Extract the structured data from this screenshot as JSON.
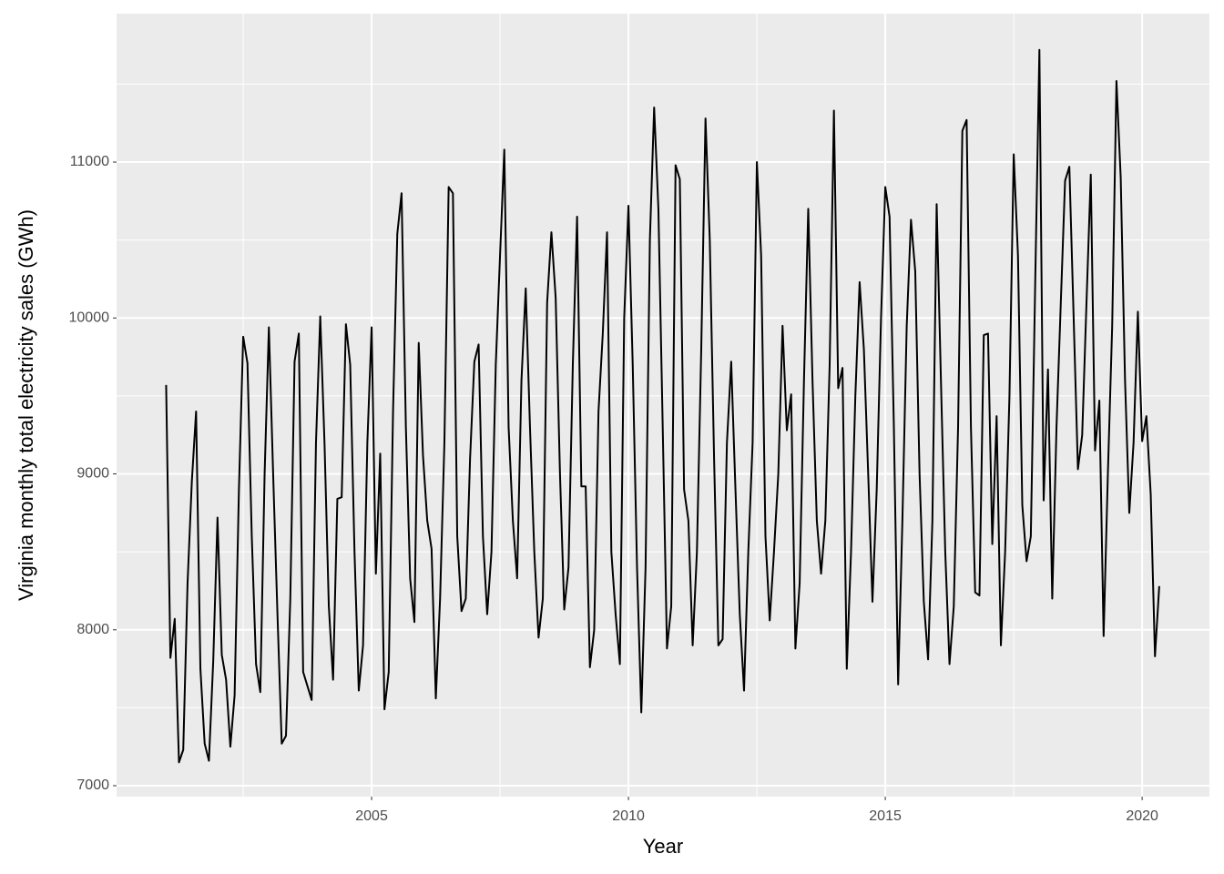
{
  "chart_data": {
    "type": "line",
    "xlabel": "Year",
    "ylabel": "Virginia monthly total electricity sales (GWh)",
    "color": "#000000",
    "grid": true,
    "xlim": [
      2000.035,
      2021.31
    ],
    "ylim": [
      6930,
      11952
    ],
    "xticks": [
      2005,
      2010,
      2015,
      2020
    ],
    "yticks": [
      7000,
      8000,
      9000,
      10000,
      11000
    ],
    "xminor": [
      2002.5,
      2007.5,
      2012.5,
      2017.5
    ],
    "yminor": [
      7500,
      8500,
      9500,
      10500,
      11500
    ],
    "x": [
      2001,
      2001.083,
      2001.167,
      2001.25,
      2001.333,
      2001.417,
      2001.5,
      2001.583,
      2001.667,
      2001.75,
      2001.833,
      2001.917,
      2002,
      2002.083,
      2002.167,
      2002.25,
      2002.333,
      2002.417,
      2002.5,
      2002.583,
      2002.667,
      2002.75,
      2002.833,
      2002.917,
      2003,
      2003.083,
      2003.167,
      2003.25,
      2003.333,
      2003.417,
      2003.5,
      2003.583,
      2003.667,
      2003.75,
      2003.833,
      2003.917,
      2004,
      2004.083,
      2004.167,
      2004.25,
      2004.333,
      2004.417,
      2004.5,
      2004.583,
      2004.667,
      2004.75,
      2004.833,
      2004.917,
      2005,
      2005.083,
      2005.167,
      2005.25,
      2005.333,
      2005.417,
      2005.5,
      2005.583,
      2005.667,
      2005.75,
      2005.833,
      2005.917,
      2006,
      2006.083,
      2006.167,
      2006.25,
      2006.333,
      2006.417,
      2006.5,
      2006.583,
      2006.667,
      2006.75,
      2006.833,
      2006.917,
      2007,
      2007.083,
      2007.167,
      2007.25,
      2007.333,
      2007.417,
      2007.5,
      2007.583,
      2007.667,
      2007.75,
      2007.833,
      2007.917,
      2008,
      2008.083,
      2008.167,
      2008.25,
      2008.333,
      2008.417,
      2008.5,
      2008.583,
      2008.667,
      2008.75,
      2008.833,
      2008.917,
      2009,
      2009.083,
      2009.167,
      2009.25,
      2009.333,
      2009.417,
      2009.5,
      2009.583,
      2009.667,
      2009.75,
      2009.833,
      2009.917,
      2010,
      2010.083,
      2010.167,
      2010.25,
      2010.333,
      2010.417,
      2010.5,
      2010.583,
      2010.667,
      2010.75,
      2010.833,
      2010.917,
      2011,
      2011.083,
      2011.167,
      2011.25,
      2011.333,
      2011.417,
      2011.5,
      2011.583,
      2011.667,
      2011.75,
      2011.833,
      2011.917,
      2012,
      2012.083,
      2012.167,
      2012.25,
      2012.333,
      2012.417,
      2012.5,
      2012.583,
      2012.667,
      2012.75,
      2012.833,
      2012.917,
      2013,
      2013.083,
      2013.167,
      2013.25,
      2013.333,
      2013.417,
      2013.5,
      2013.583,
      2013.667,
      2013.75,
      2013.833,
      2013.917,
      2014,
      2014.083,
      2014.167,
      2014.25,
      2014.333,
      2014.417,
      2014.5,
      2014.583,
      2014.667,
      2014.75,
      2014.833,
      2014.917,
      2015,
      2015.083,
      2015.167,
      2015.25,
      2015.333,
      2015.417,
      2015.5,
      2015.583,
      2015.667,
      2015.75,
      2015.833,
      2015.917,
      2016,
      2016.083,
      2016.167,
      2016.25,
      2016.333,
      2016.417,
      2016.5,
      2016.583,
      2016.667,
      2016.75,
      2016.833,
      2016.917,
      2017,
      2017.083,
      2017.167,
      2017.25,
      2017.333,
      2017.417,
      2017.5,
      2017.583,
      2017.667,
      2017.75,
      2017.833,
      2017.917,
      2018,
      2018.083,
      2018.167,
      2018.25,
      2018.333,
      2018.417,
      2018.5,
      2018.583,
      2018.667,
      2018.75,
      2018.833,
      2018.917,
      2019,
      2019.083,
      2019.167,
      2019.25,
      2019.333,
      2019.417,
      2019.5,
      2019.583,
      2019.667,
      2019.75,
      2019.833,
      2019.917,
      2020,
      2020.083,
      2020.167,
      2020.25,
      2020.333
    ],
    "values": [
      9570,
      7820,
      8070,
      7150,
      7230,
      8300,
      8950,
      9400,
      7750,
      7270,
      7160,
      7800,
      8720,
      7840,
      7680,
      7250,
      7580,
      8900,
      9880,
      9710,
      8600,
      7780,
      7600,
      9000,
      9940,
      9000,
      8100,
      7270,
      7320,
      8200,
      9720,
      9900,
      7730,
      7640,
      7550,
      9200,
      10010,
      9200,
      8150,
      7680,
      8840,
      8850,
      9960,
      9700,
      8500,
      7610,
      7900,
      9200,
      9940,
      8360,
      9130,
      7490,
      7730,
      9400,
      10540,
      10800,
      9300,
      8330,
      8050,
      9840,
      9120,
      8700,
      8520,
      7560,
      8200,
      9200,
      10840,
      10800,
      8600,
      8120,
      8200,
      9100,
      9720,
      9830,
      8600,
      8100,
      8500,
      9700,
      10400,
      11080,
      9300,
      8700,
      8330,
      9600,
      10190,
      9300,
      8500,
      7950,
      8200,
      10100,
      10550,
      10130,
      9000,
      8130,
      8400,
      9700,
      10650,
      8920,
      8920,
      7760,
      8000,
      9400,
      9900,
      10550,
      8500,
      8100,
      7780,
      10000,
      10720,
      9700,
      8400,
      7470,
      8400,
      10500,
      11350,
      10700,
      9300,
      7880,
      8150,
      10980,
      10890,
      8900,
      8700,
      7900,
      8500,
      9800,
      11280,
      10500,
      9100,
      7900,
      7940,
      9200,
      9720,
      8900,
      8100,
      7610,
      8500,
      9200,
      11000,
      10400,
      8600,
      8060,
      8500,
      9000,
      9950,
      9280,
      9510,
      7880,
      8300,
      9600,
      10700,
      9600,
      8700,
      8360,
      8700,
      9700,
      11330,
      9550,
      9680,
      7750,
      8500,
      9500,
      10230,
      9800,
      9000,
      8180,
      8900,
      10000,
      10840,
      10650,
      9300,
      7650,
      8700,
      9950,
      10630,
      10300,
      9000,
      8180,
      7810,
      8700,
      10730,
      9600,
      8500,
      7780,
      8150,
      9300,
      11200,
      11270,
      9300,
      8240,
      8220,
      9890,
      9900,
      8550,
      9370,
      7900,
      8500,
      9500,
      11050,
      10400,
      8800,
      8440,
      8600,
      10200,
      11720,
      8830,
      9670,
      8200,
      9300,
      10100,
      10880,
      10970,
      10000,
      9030,
      9250,
      10100,
      10920,
      9150,
      9470,
      7960,
      9000,
      9950,
      11520,
      10900,
      9600,
      8750,
      9200,
      10040,
      9210,
      9370,
      8870,
      7830,
      8280
    ]
  }
}
